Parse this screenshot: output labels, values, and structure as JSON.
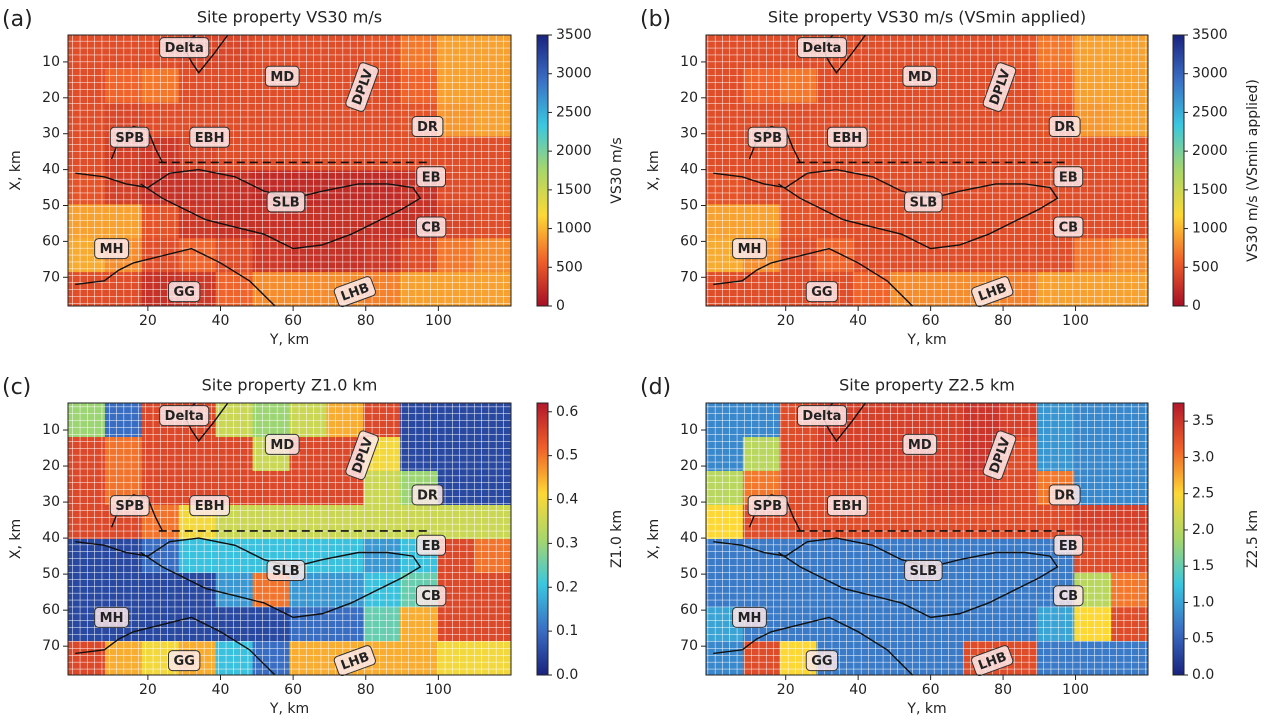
{
  "chart_data": [
    {
      "type": "heatmap",
      "panel_label": "(a)",
      "title": "Site property VS30 m/s",
      "xlabel": "Y, km",
      "ylabel": "X, km",
      "xlim": [
        -2,
        120
      ],
      "ylim": [
        78,
        2.5
      ],
      "xticks": [
        20,
        40,
        60,
        80,
        100
      ],
      "yticks": [
        10,
        20,
        30,
        40,
        50,
        60,
        70
      ],
      "x": [
        3.08,
        13.25,
        23.42,
        33.58,
        43.75,
        53.92,
        64.08,
        74.25,
        84.42,
        94.58,
        104.75,
        114.92
      ],
      "y": [
        7.22,
        16.66,
        26.09,
        35.53,
        44.97,
        54.41,
        63.84,
        73.28
      ],
      "z": [
        [
          450,
          450,
          450,
          400,
          400,
          450,
          450,
          450,
          500,
          700,
          900,
          900
        ],
        [
          450,
          600,
          700,
          450,
          450,
          450,
          450,
          450,
          450,
          600,
          900,
          900
        ],
        [
          450,
          400,
          450,
          450,
          450,
          450,
          450,
          450,
          450,
          500,
          850,
          900
        ],
        [
          450,
          350,
          300,
          400,
          450,
          450,
          450,
          450,
          450,
          450,
          450,
          450
        ],
        [
          500,
          350,
          250,
          250,
          250,
          200,
          200,
          200,
          200,
          250,
          450,
          450
        ],
        [
          900,
          900,
          500,
          300,
          250,
          250,
          250,
          250,
          250,
          250,
          400,
          450
        ],
        [
          950,
          800,
          450,
          600,
          450,
          300,
          250,
          250,
          300,
          450,
          700,
          800
        ],
        [
          450,
          450,
          250,
          300,
          600,
          800,
          800,
          800,
          750,
          900,
          900,
          900
        ]
      ],
      "clim": [
        0,
        3500
      ],
      "cticks": [
        0,
        500,
        1000,
        1500,
        2000,
        2500,
        3000,
        3500
      ],
      "colorbar_label": "VS30 m/s",
      "colormap": [
        "#a50f26",
        "#f0602a",
        "#fdd835",
        "#a8d66a",
        "#3ac7e0",
        "#3a6fc4",
        "#1a237e"
      ],
      "annotations": [
        "Delta",
        "MD",
        "DPLV",
        "DR",
        "SPB",
        "EBH",
        "EB",
        "SLB",
        "CB",
        "MH",
        "GG",
        "LHB"
      ]
    },
    {
      "type": "heatmap",
      "panel_label": "(b)",
      "title": "Site property VS30 m/s (VSmin applied)",
      "xlabel": "Y, km",
      "ylabel": "X, km",
      "xlim": [
        -2,
        120
      ],
      "ylim": [
        78,
        2.5
      ],
      "xticks": [
        20,
        40,
        60,
        80,
        100
      ],
      "yticks": [
        10,
        20,
        30,
        40,
        50,
        60,
        70
      ],
      "x": [
        3.08,
        13.25,
        23.42,
        33.58,
        43.75,
        53.92,
        64.08,
        74.25,
        84.42,
        94.58,
        104.75,
        114.92
      ],
      "y": [
        7.22,
        16.66,
        26.09,
        35.53,
        44.97,
        54.41,
        63.84,
        73.28
      ],
      "z": [
        [
          450,
          450,
          450,
          450,
          450,
          450,
          450,
          450,
          500,
          700,
          900,
          900
        ],
        [
          450,
          600,
          700,
          450,
          450,
          450,
          450,
          450,
          450,
          600,
          900,
          900
        ],
        [
          450,
          450,
          450,
          450,
          450,
          450,
          450,
          450,
          450,
          500,
          850,
          900
        ],
        [
          450,
          450,
          450,
          450,
          450,
          450,
          450,
          450,
          450,
          450,
          450,
          450
        ],
        [
          500,
          450,
          450,
          450,
          450,
          450,
          450,
          450,
          450,
          450,
          450,
          450
        ],
        [
          900,
          900,
          500,
          450,
          450,
          450,
          450,
          450,
          450,
          450,
          450,
          450
        ],
        [
          950,
          800,
          450,
          600,
          450,
          450,
          450,
          450,
          450,
          450,
          700,
          800
        ],
        [
          450,
          450,
          450,
          450,
          600,
          800,
          800,
          800,
          750,
          900,
          900,
          900
        ]
      ],
      "clim": [
        0,
        3500
      ],
      "cticks": [
        0,
        500,
        1000,
        1500,
        2000,
        2500,
        3000,
        3500
      ],
      "colorbar_label": "VS30 m/s (VSmin applied)",
      "colormap": [
        "#a50f26",
        "#f0602a",
        "#fdd835",
        "#a8d66a",
        "#3ac7e0",
        "#3a6fc4",
        "#1a237e"
      ],
      "annotations": [
        "Delta",
        "MD",
        "DPLV",
        "DR",
        "SPB",
        "EBH",
        "EB",
        "SLB",
        "CB",
        "MH",
        "GG",
        "LHB"
      ]
    },
    {
      "type": "heatmap",
      "panel_label": "(c)",
      "title": "Site property Z1.0 km",
      "xlabel": "Y, km",
      "ylabel": "X, km",
      "xlim": [
        -2,
        120
      ],
      "ylim": [
        78,
        2.5
      ],
      "xticks": [
        20,
        40,
        60,
        80,
        100
      ],
      "yticks": [
        10,
        20,
        30,
        40,
        50,
        60,
        70
      ],
      "x": [
        3.08,
        13.25,
        23.42,
        33.58,
        43.75,
        53.92,
        64.08,
        74.25,
        84.42,
        94.58,
        104.75,
        114.92
      ],
      "y": [
        7.22,
        16.66,
        26.09,
        35.53,
        44.97,
        54.41,
        63.84,
        73.28
      ],
      "z": [
        [
          0.3,
          0.1,
          0.55,
          0.55,
          0.35,
          0.3,
          0.35,
          0.45,
          0.55,
          0.05,
          0.05,
          0.05
        ],
        [
          0.55,
          0.5,
          0.55,
          0.55,
          0.55,
          0.35,
          0.55,
          0.55,
          0.4,
          0.05,
          0.05,
          0.05
        ],
        [
          0.55,
          0.5,
          0.55,
          0.55,
          0.55,
          0.55,
          0.55,
          0.55,
          0.35,
          0.3,
          0.05,
          0.05
        ],
        [
          0.55,
          0.55,
          0.5,
          0.4,
          0.35,
          0.35,
          0.35,
          0.35,
          0.35,
          0.35,
          0.35,
          0.35
        ],
        [
          0.05,
          0.05,
          0.1,
          0.2,
          0.2,
          0.2,
          0.2,
          0.2,
          0.15,
          0.2,
          0.55,
          0.5
        ],
        [
          0.05,
          0.05,
          0.05,
          0.05,
          0.15,
          0.5,
          0.15,
          0.15,
          0.2,
          0.25,
          0.55,
          0.55
        ],
        [
          0.05,
          0.05,
          0.05,
          0.05,
          0.05,
          0.05,
          0.1,
          0.1,
          0.25,
          0.45,
          0.55,
          0.55
        ],
        [
          0.55,
          0.45,
          0.4,
          0.45,
          0.2,
          0.1,
          0.45,
          0.45,
          0.45,
          0.45,
          0.4,
          0.4
        ]
      ],
      "clim": [
        0,
        0.62
      ],
      "cticks": [
        {
          "value": 0,
          "label": "0.0"
        },
        0.1,
        0.2,
        0.3,
        0.4,
        0.5,
        0.6
      ],
      "colorbar_label": "Z1.0 km",
      "colormap": [
        "#1a237e",
        "#3a6fc4",
        "#3ac7e0",
        "#a8d66a",
        "#fdd835",
        "#f0602a",
        "#b2182b"
      ],
      "annotations": [
        "Delta",
        "MD",
        "DPLV",
        "DR",
        "SPB",
        "EBH",
        "EB",
        "SLB",
        "CB",
        "MH",
        "GG",
        "LHB"
      ]
    },
    {
      "type": "heatmap",
      "panel_label": "(d)",
      "title": "Site property Z2.5 km",
      "xlabel": "Y, km",
      "ylabel": "X, km",
      "xlim": [
        -2,
        120
      ],
      "ylim": [
        78,
        2.5
      ],
      "xticks": [
        20,
        40,
        60,
        80,
        100
      ],
      "yticks": [
        10,
        20,
        30,
        40,
        50,
        60,
        70
      ],
      "x": [
        3.08,
        13.25,
        23.42,
        33.58,
        43.75,
        53.92,
        64.08,
        74.25,
        84.42,
        94.58,
        104.75,
        114.92
      ],
      "y": [
        7.22,
        16.66,
        26.09,
        35.53,
        44.97,
        54.41,
        63.84,
        73.28
      ],
      "z": [
        [
          0.8,
          0.8,
          3.3,
          3.4,
          3.4,
          3.4,
          3.4,
          3.5,
          3.4,
          0.9,
          0.8,
          0.8
        ],
        [
          0.8,
          2.0,
          3.3,
          3.4,
          3.4,
          3.4,
          3.4,
          3.5,
          3.3,
          0.9,
          0.8,
          0.8
        ],
        [
          2.0,
          3.0,
          3.3,
          3.3,
          3.3,
          3.3,
          3.4,
          3.4,
          3.3,
          3.0,
          0.8,
          0.8
        ],
        [
          2.5,
          3.3,
          3.3,
          3.3,
          3.3,
          3.3,
          3.3,
          3.3,
          3.3,
          3.3,
          3.4,
          3.4
        ],
        [
          0.7,
          0.7,
          0.7,
          0.7,
          0.7,
          0.7,
          0.7,
          0.7,
          0.7,
          0.7,
          3.3,
          3.3
        ],
        [
          0.7,
          0.7,
          0.7,
          0.7,
          0.7,
          0.7,
          0.7,
          0.7,
          0.7,
          0.7,
          2.0,
          3.0
        ],
        [
          1.0,
          0.7,
          0.7,
          0.7,
          0.7,
          0.7,
          0.7,
          0.7,
          0.7,
          1.0,
          2.5,
          3.3
        ],
        [
          0.8,
          3.3,
          2.5,
          0.7,
          0.7,
          0.7,
          0.7,
          3.3,
          3.3,
          0.7,
          0.7,
          0.7
        ]
      ],
      "clim": [
        0,
        3.75
      ],
      "cticks": [
        {
          "value": 0,
          "label": "0.0"
        },
        0.5,
        {
          "value": 1,
          "label": "1.0"
        },
        1.5,
        {
          "value": 2,
          "label": "2.0"
        },
        2.5,
        {
          "value": 3,
          "label": "3.0"
        },
        3.5
      ],
      "colorbar_label": "Z2.5 km",
      "colormap": [
        "#1a237e",
        "#3a6fc4",
        "#3ac7e0",
        "#a8d66a",
        "#fdd835",
        "#f0602a",
        "#b2182b"
      ],
      "annotations": [
        "Delta",
        "MD",
        "DPLV",
        "DR",
        "SPB",
        "EBH",
        "EB",
        "SLB",
        "CB",
        "MH",
        "GG",
        "LHB"
      ]
    }
  ]
}
